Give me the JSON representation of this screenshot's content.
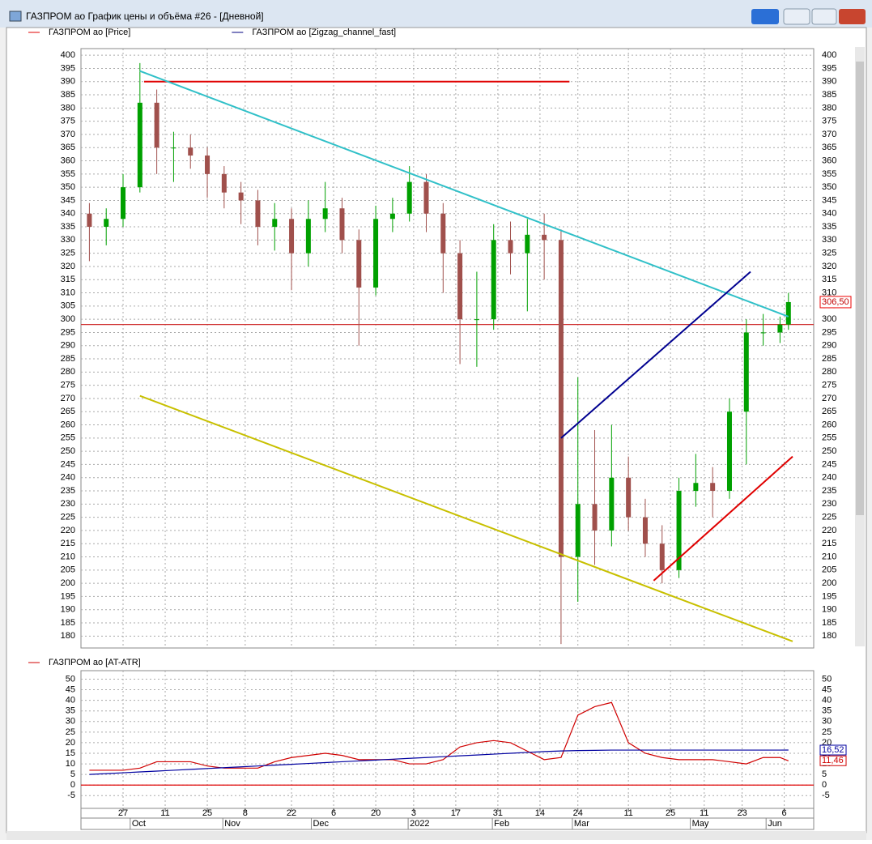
{
  "window_title": "ГАЗПРОМ ао График цены и объёма #26 - [Дневной]",
  "chart_data": [
    {
      "type": "candlestick",
      "series": [
        {
          "name": "ГАЗПРОМ ао [Price]",
          "color": "#e00000"
        },
        {
          "name": "ГАЗПРОМ ао [Zigzag_channel_fast]",
          "color": "#000080"
        }
      ],
      "x": [
        -8,
        -4,
        0,
        4,
        8,
        12,
        16,
        20,
        24,
        28,
        32,
        36,
        40,
        44,
        48,
        52,
        56,
        60,
        64,
        68,
        72,
        76,
        80,
        84,
        88,
        92,
        96,
        100,
        104,
        108,
        112,
        116,
        120,
        124,
        128,
        132,
        136,
        140,
        144,
        148,
        152,
        156,
        158
      ],
      "open": [
        340,
        335,
        338,
        350,
        382,
        365,
        365,
        362,
        355,
        348,
        345,
        335,
        338,
        325,
        338,
        342,
        330,
        312,
        338,
        340,
        352,
        340,
        325,
        300,
        300,
        330,
        325,
        332,
        330,
        210,
        230,
        220,
        240,
        225,
        215,
        205,
        235,
        238,
        235,
        265,
        295,
        295,
        298
      ],
      "high": [
        344,
        342,
        355,
        397,
        387,
        371,
        370,
        365,
        358,
        352,
        349,
        344,
        342,
        345,
        352,
        346,
        334,
        343,
        346,
        358,
        355,
        344,
        330,
        318,
        336,
        337,
        338,
        340,
        334,
        278,
        258,
        260,
        248,
        232,
        222,
        240,
        249,
        244,
        270,
        300,
        302,
        301,
        310
      ],
      "low": [
        322,
        328,
        335,
        348,
        355,
        352,
        357,
        346,
        342,
        336,
        328,
        326,
        311,
        320,
        333,
        325,
        290,
        309,
        333,
        337,
        333,
        310,
        283,
        282,
        296,
        317,
        303,
        315,
        177,
        193,
        207,
        214,
        220,
        210,
        200,
        202,
        229,
        225,
        232,
        245,
        290,
        291,
        296
      ],
      "close": [
        335,
        338,
        350,
        382,
        365,
        365,
        362,
        355,
        348,
        345,
        335,
        338,
        325,
        338,
        342,
        330,
        312,
        338,
        340,
        352,
        340,
        325,
        300,
        300,
        330,
        325,
        332,
        330,
        210,
        230,
        220,
        240,
        225,
        215,
        205,
        235,
        238,
        235,
        265,
        295,
        295,
        298,
        306.5
      ],
      "up_color": "#00a000",
      "down_color": "#a0504c",
      "last_price": {
        "value": 306.5,
        "label": "306,50"
      },
      "price_line": {
        "value": 298,
        "color": "#d03030"
      },
      "trendlines": [
        {
          "color": "#e00000",
          "x": [
            5,
            106
          ],
          "y": [
            390,
            390
          ]
        },
        {
          "color": "#30c0c8",
          "x": [
            4,
            158
          ],
          "y": [
            394,
            301
          ]
        },
        {
          "color": "#c8c000",
          "x": [
            4,
            159
          ],
          "y": [
            271,
            178
          ]
        },
        {
          "color": "#000090",
          "x": [
            104,
            149
          ],
          "y": [
            255,
            318
          ]
        },
        {
          "color": "#e00000",
          "x": [
            126,
            159
          ],
          "y": [
            201,
            248
          ]
        }
      ],
      "xlim": [
        -10,
        164
      ],
      "ylim": [
        175.5,
        402.5
      ],
      "yticks": [
        180,
        185,
        190,
        195,
        200,
        205,
        210,
        215,
        220,
        225,
        230,
        235,
        240,
        245,
        250,
        255,
        260,
        265,
        270,
        275,
        280,
        285,
        290,
        295,
        300,
        305,
        310,
        315,
        320,
        325,
        330,
        335,
        340,
        345,
        350,
        355,
        360,
        365,
        370,
        375,
        380,
        385,
        390,
        395,
        400
      ],
      "grid": true
    },
    {
      "type": "line",
      "series": [
        {
          "name": "ГАЗПРОМ ао [AT-ATR]",
          "color": "#d00000",
          "last_label": {
            "value": 11.46,
            "label": "11,46"
          },
          "values": [
            7,
            7,
            7,
            8,
            11,
            11,
            11,
            9,
            8,
            8,
            8,
            11,
            13,
            14,
            15,
            14,
            12,
            12,
            12,
            10,
            10,
            12,
            18,
            20,
            21,
            20,
            16,
            12,
            13,
            33,
            37,
            39,
            20,
            15,
            13,
            12,
            12,
            12,
            11,
            10,
            13,
            13,
            11.46
          ]
        },
        {
          "color": "#0000a0",
          "last_label": {
            "value": 16.52,
            "label": "16,52"
          },
          "values": [
            5,
            5.4,
            5.8,
            6.2,
            6.6,
            7,
            7.4,
            7.8,
            8.2,
            8.6,
            9,
            9.4,
            9.8,
            10.2,
            10.6,
            11,
            11.4,
            11.8,
            12.2,
            12.6,
            13,
            13.4,
            13.8,
            14.2,
            14.6,
            15,
            15.4,
            15.8,
            16.1,
            16.3,
            16.4,
            16.5,
            16.5,
            16.5,
            16.5,
            16.5,
            16.5,
            16.5,
            16.5,
            16.5,
            16.5,
            16.5,
            16.52
          ]
        }
      ],
      "x": [
        -8,
        -4,
        0,
        4,
        8,
        12,
        16,
        20,
        24,
        28,
        32,
        36,
        40,
        44,
        48,
        52,
        56,
        60,
        64,
        68,
        72,
        76,
        80,
        84,
        88,
        92,
        96,
        100,
        104,
        108,
        112,
        116,
        120,
        124,
        128,
        132,
        136,
        140,
        144,
        148,
        152,
        156,
        158
      ],
      "zero_line": {
        "value": 0,
        "color": "#e00000"
      },
      "xlim": [
        -10,
        164
      ],
      "xticks": [
        {
          "value": 0,
          "label": "27"
        },
        {
          "value": 10,
          "label": "11"
        },
        {
          "value": 20,
          "label": "25"
        },
        {
          "value": 29,
          "label": "8"
        },
        {
          "value": 40,
          "label": "22"
        },
        {
          "value": 50,
          "label": "6"
        },
        {
          "value": 60,
          "label": "20"
        },
        {
          "value": 69,
          "label": "3"
        },
        {
          "value": 79,
          "label": "17"
        },
        {
          "value": 89,
          "label": "31"
        },
        {
          "value": 99,
          "label": "14"
        },
        {
          "value": 108,
          "label": "24"
        },
        {
          "value": 120,
          "label": "11"
        },
        {
          "value": 130,
          "label": "25"
        },
        {
          "value": 138,
          "label": "11"
        },
        {
          "value": 147,
          "label": "23"
        },
        {
          "value": 157,
          "label": "6"
        }
      ],
      "months": [
        {
          "value": 4,
          "label": "Oct"
        },
        {
          "value": 26,
          "label": "Nov"
        },
        {
          "value": 47,
          "label": "Dec"
        },
        {
          "value": 70,
          "label": "2022"
        },
        {
          "value": 90,
          "label": "Feb"
        },
        {
          "value": 109,
          "label": "Mar"
        },
        {
          "value": 137,
          "label": "May"
        },
        {
          "value": 155,
          "label": "Jun"
        }
      ],
      "ylim": [
        -11,
        54
      ],
      "yticks": [
        -5,
        0,
        5,
        10,
        15,
        20,
        25,
        30,
        35,
        40,
        45,
        50
      ],
      "grid": true
    }
  ]
}
